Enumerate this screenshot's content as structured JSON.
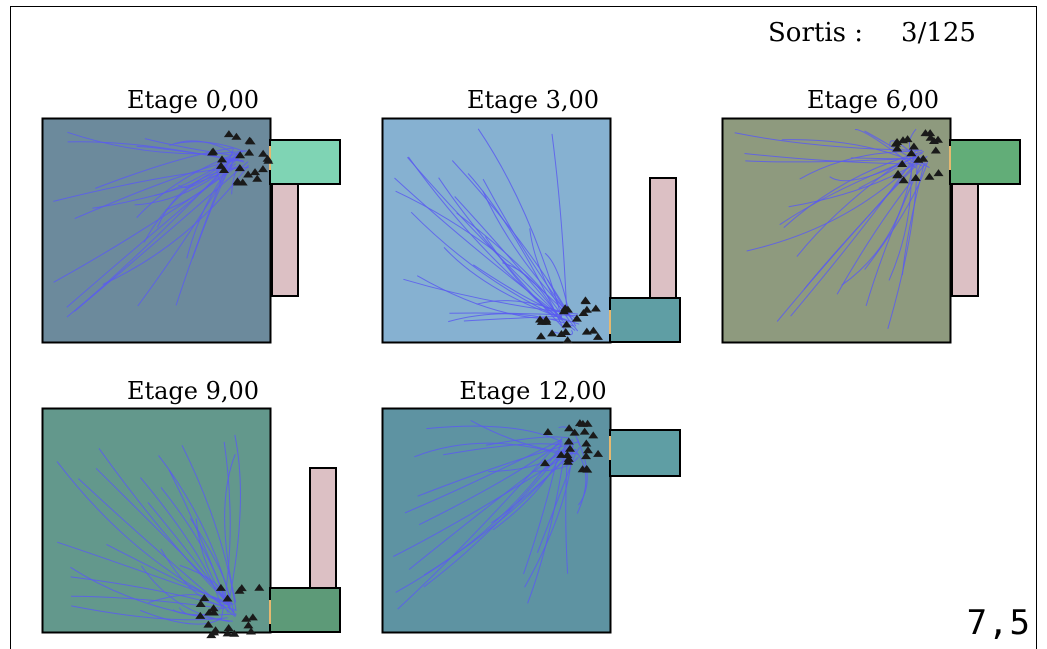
{
  "header": {
    "exited_label": "Sortis :",
    "exited_value": "3/125"
  },
  "clock": "7,5",
  "floors": [
    {
      "label": "Etage 0,00",
      "room_color": "#6c8a9c",
      "corridor_color": "#dcc0c4",
      "landing_color": "#7fd4b4",
      "exit_side": "top"
    },
    {
      "label": "Etage 3,00",
      "room_color": "#86b1d1",
      "corridor_color": "#dcc0c4",
      "landing_color": "#5f9ea4",
      "exit_side": "bottom"
    },
    {
      "label": "Etage 6,00",
      "room_color": "#8e9a7e",
      "corridor_color": "#dcc0c4",
      "landing_color": "#62ad78",
      "exit_side": "top"
    },
    {
      "label": "Etage 9,00",
      "room_color": "#63988c",
      "corridor_color": "#dcc0c4",
      "landing_color": "#5d9a78",
      "exit_side": "bottom"
    },
    {
      "label": "Etage 12,00",
      "room_color": "#5e93a2",
      "corridor_color": "#dcc0c4",
      "landing_color": "#5f9ea4",
      "exit_side": "top-short"
    }
  ],
  "trail_color": "#5a5cf0",
  "agent_color": "#1a1a1a"
}
